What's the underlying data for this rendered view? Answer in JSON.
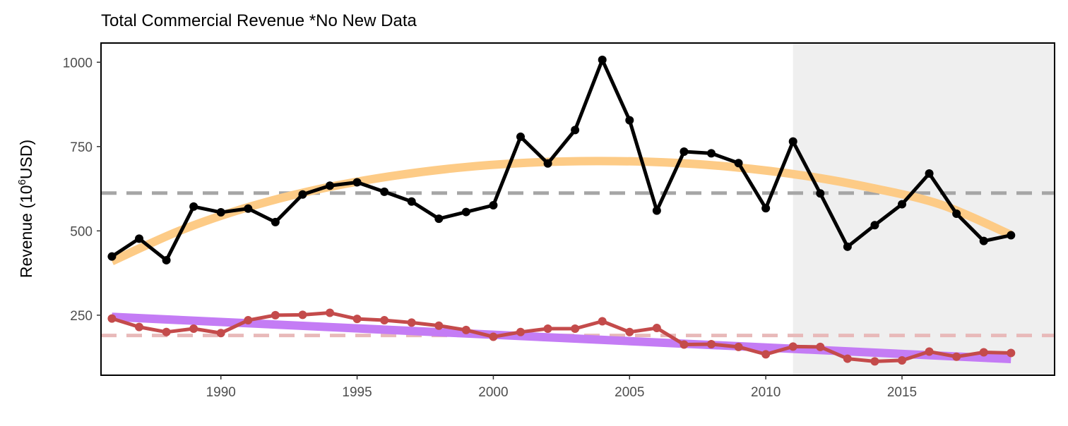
{
  "chart_data": {
    "type": "line",
    "title": "Total Commercial Revenue *No New Data",
    "ylabel_parts": [
      "Revenue (10",
      "6",
      "USD)"
    ],
    "xlabel": "",
    "xlim": [
      1985.6,
      2020.6
    ],
    "ylim": [
      72,
      1057
    ],
    "x_ticks": [
      1990,
      1995,
      2000,
      2005,
      2010,
      2015
    ],
    "y_ticks": [
      250,
      500,
      750,
      1000
    ],
    "shaded_region": {
      "x_start": 2011,
      "x_end": 2020.6,
      "color": "#efefef"
    },
    "x": [
      1986,
      1987,
      1988,
      1989,
      1990,
      1991,
      1992,
      1993,
      1994,
      1995,
      1996,
      1997,
      1998,
      1999,
      2000,
      2001,
      2002,
      2003,
      2004,
      2005,
      2006,
      2007,
      2008,
      2009,
      2010,
      2011,
      2012,
      2013,
      2014,
      2015,
      2016,
      2017,
      2018,
      2019
    ],
    "series": [
      {
        "color": "#000000",
        "values": [
          424,
          477,
          413,
          572,
          555,
          566,
          526,
          608,
          634,
          644,
          616,
          587,
          536,
          556,
          576,
          779,
          700,
          799,
          1007,
          828,
          560,
          735,
          730,
          701,
          567,
          765,
          611,
          453,
          517,
          579,
          670,
          551,
          470,
          487
        ],
        "mean": 612,
        "mean_color": "#a6a6a6",
        "trend_color": "#fdcb86",
        "trend": [
          410,
          502,
          572,
          624,
          661,
          687,
          702,
          707,
          703,
          689,
          664,
          627,
          577,
          488
        ]
      },
      {
        "color": "#c44b4b",
        "values": [
          240,
          215,
          200,
          210,
          197,
          235,
          250,
          251,
          257,
          239,
          235,
          228,
          219,
          206,
          186,
          200,
          210,
          210,
          232,
          200,
          212,
          163,
          164,
          156,
          134,
          157,
          156,
          121,
          113,
          116,
          142,
          127,
          140,
          138
        ],
        "mean": 190,
        "mean_color": "#e8b9b9",
        "trend_color": "#c47cf5",
        "trend": [
          245,
          120
        ]
      }
    ]
  }
}
